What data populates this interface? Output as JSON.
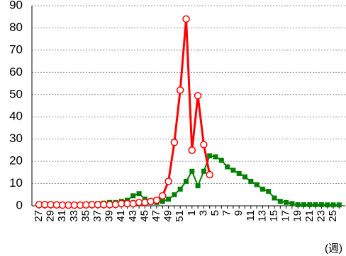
{
  "chart_data": {
    "type": "line",
    "x_label": "(週)",
    "categories": [
      "27",
      null,
      "29",
      null,
      "31",
      null,
      "33",
      null,
      "35",
      null,
      "37",
      null,
      "39",
      null,
      "41",
      null,
      "43",
      null,
      "45",
      null,
      "47",
      null,
      "49",
      null,
      "51",
      null,
      "1",
      null,
      "3",
      null,
      "5",
      null,
      "7",
      null,
      "9",
      null,
      "11",
      null,
      "13",
      null,
      "15",
      null,
      "17",
      null,
      "19",
      null,
      "21",
      null,
      "23",
      null,
      "25",
      null
    ],
    "series": [
      {
        "color": "#008000",
        "marker": "square",
        "values": [
          0.3,
          0.3,
          0.3,
          0.3,
          0.3,
          0.3,
          0.3,
          0.5,
          0.5,
          0.8,
          1,
          1.2,
          1.5,
          1.5,
          2,
          2.5,
          4.5,
          5.5,
          3,
          1.5,
          1.5,
          2,
          3,
          5,
          7.5,
          11,
          15.5,
          9,
          15.5,
          22.5,
          22,
          20.5,
          17.5,
          16,
          14.5,
          13,
          11,
          9.5,
          7.5,
          6.5,
          3.5,
          2,
          1.5,
          1,
          0.5,
          0.5,
          0.5,
          0.5,
          0.5,
          0.4,
          0.4,
          0.4
        ]
      },
      {
        "color": "#ff0000",
        "marker": "circle",
        "values": [
          0.5,
          0.5,
          0.5,
          0.4,
          0.3,
          0.3,
          0.3,
          0.3,
          0.4,
          0.5,
          0.5,
          0.5,
          0.5,
          0.6,
          1,
          1,
          1,
          1.5,
          1.5,
          2,
          2.5,
          4.5,
          11,
          28.5,
          52,
          84,
          25,
          49.5,
          27.5,
          14,
          null,
          null,
          null,
          null,
          null,
          null,
          null,
          null,
          null,
          null,
          null,
          null,
          null,
          null,
          null,
          null,
          null,
          null,
          null,
          null,
          null,
          null
        ]
      }
    ],
    "ylim": [
      0,
      90
    ],
    "yticks": [
      0,
      10,
      20,
      30,
      40,
      50,
      60,
      70,
      80,
      90
    ],
    "grid": true
  }
}
